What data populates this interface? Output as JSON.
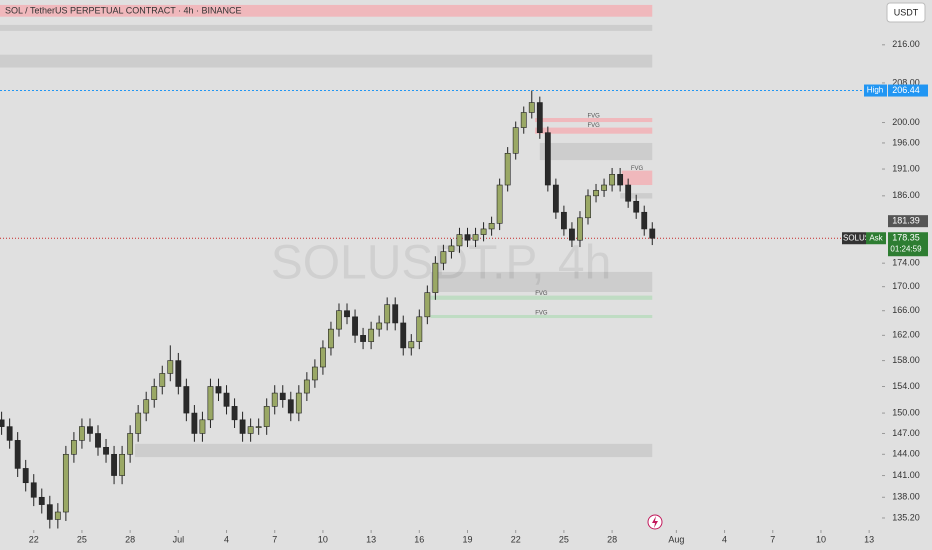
{
  "chart_data": {
    "type": "candlestick",
    "title": "SOL / TetherUS PERPETUAL CONTRACT · 4h · BINANCE",
    "watermark": "SOLUSDT.P, 4h",
    "currency_button": "USDT",
    "log_scale": true,
    "grid": false,
    "up_color": "#9aa865",
    "down_color": "#2a2a2a",
    "xlim": [
      -2.1,
      52.8
    ],
    "xticks": [
      {
        "value": 0,
        "label": "22"
      },
      {
        "value": 3,
        "label": "25"
      },
      {
        "value": 6,
        "label": "28"
      },
      {
        "value": 9,
        "label": "Jul"
      },
      {
        "value": 12,
        "label": "4"
      },
      {
        "value": 15,
        "label": "7"
      },
      {
        "value": 18,
        "label": "10"
      },
      {
        "value": 21,
        "label": "13"
      },
      {
        "value": 24,
        "label": "16"
      },
      {
        "value": 27,
        "label": "19"
      },
      {
        "value": 30,
        "label": "22"
      },
      {
        "value": 33,
        "label": "25"
      },
      {
        "value": 36,
        "label": "28"
      },
      {
        "value": 40,
        "label": "Aug"
      },
      {
        "value": 43,
        "label": "4"
      },
      {
        "value": 46,
        "label": "7"
      },
      {
        "value": 49,
        "label": "10"
      },
      {
        "value": 52,
        "label": "13"
      }
    ],
    "ylim": [
      133.6,
      225.8
    ],
    "yticks": [
      {
        "value": 135.2,
        "label": "135.20"
      },
      {
        "value": 138,
        "label": "138.00"
      },
      {
        "value": 141,
        "label": "141.00"
      },
      {
        "value": 144,
        "label": "144.00"
      },
      {
        "value": 147,
        "label": "147.00"
      },
      {
        "value": 150,
        "label": "150.00"
      },
      {
        "value": 154,
        "label": "154.00"
      },
      {
        "value": 158,
        "label": "158.00"
      },
      {
        "value": 162,
        "label": "162.00"
      },
      {
        "value": 166,
        "label": "166.00"
      },
      {
        "value": 170,
        "label": "170.00"
      },
      {
        "value": 174,
        "label": "174.00"
      },
      {
        "value": 186,
        "label": "186.00"
      },
      {
        "value": 191,
        "label": "191.00"
      },
      {
        "value": 196,
        "label": "196.00"
      },
      {
        "value": 200,
        "label": "200.00"
      },
      {
        "value": 208,
        "label": "208.00"
      },
      {
        "value": 216,
        "label": "216.00"
      }
    ],
    "x": [
      -2,
      -1.5,
      -1,
      -0.5,
      0,
      0.5,
      1,
      1.5,
      2,
      2.5,
      3,
      3.5,
      4,
      4.5,
      5,
      5.5,
      6,
      6.5,
      7,
      7.5,
      8,
      8.5,
      9,
      9.5,
      10,
      10.5,
      11,
      11.5,
      12,
      12.5,
      13,
      13.5,
      14,
      14.5,
      15,
      15.5,
      16,
      16.5,
      17,
      17.5,
      18,
      18.5,
      19,
      19.5,
      20,
      20.5,
      21,
      21.5,
      22,
      22.5,
      23,
      23.5,
      24,
      24.5,
      25,
      25.5,
      26,
      26.5,
      27,
      27.5,
      28,
      28.5,
      29,
      29.5,
      30,
      30.5,
      31,
      31.5,
      32,
      32.5,
      33,
      33.5,
      34,
      34.5,
      35,
      35.5,
      36,
      36.5,
      37,
      37.5,
      38,
      38.5
    ],
    "open": [
      149,
      148,
      146,
      142,
      140,
      138,
      137,
      135,
      136,
      144,
      146,
      148,
      147,
      145,
      144,
      141,
      144,
      147,
      150,
      152,
      154,
      156,
      158,
      154,
      150,
      147,
      149,
      154,
      153,
      151,
      149,
      147,
      148,
      148,
      151,
      153,
      152,
      150,
      153,
      155,
      157,
      160,
      163,
      166,
      165,
      162,
      161,
      163,
      164,
      167,
      164,
      160,
      161,
      165,
      169,
      174,
      176,
      177,
      179,
      178,
      179,
      180,
      181,
      188,
      194,
      199,
      202,
      204,
      198,
      188,
      183,
      180,
      178,
      182,
      186,
      187,
      188,
      190,
      188,
      185,
      183,
      180
    ],
    "high": [
      150.2,
      149.2,
      147.2,
      143.2,
      141.2,
      139.2,
      138.2,
      137.2,
      145.2,
      147.2,
      149.2,
      149.2,
      148.2,
      146.2,
      145.2,
      145.2,
      148.2,
      151.2,
      153.2,
      155.2,
      157.2,
      160.4,
      159.2,
      155.2,
      151.2,
      150.2,
      155.2,
      155.2,
      154.2,
      152.2,
      150.2,
      149.2,
      149.2,
      152.2,
      154.2,
      154.2,
      153.2,
      154.2,
      156.2,
      158.2,
      161.2,
      164.2,
      167.2,
      167.2,
      166.2,
      163.2,
      164.2,
      165.2,
      168.2,
      168.2,
      165.2,
      162.2,
      166.2,
      170.2,
      175.2,
      177.2,
      178.2,
      180.2,
      180.2,
      180.2,
      181.2,
      182.2,
      189.2,
      195.2,
      200.2,
      203.2,
      206.44,
      205.2,
      199.2,
      189.2,
      184.2,
      181.2,
      183.2,
      187.2,
      188.2,
      189.2,
      191.2,
      191.2,
      189.2,
      186.2,
      184.2,
      181.2
    ],
    "low": [
      146.8,
      144.8,
      140.8,
      138.8,
      136.8,
      135.8,
      133.8,
      133.8,
      134.8,
      142.8,
      144.8,
      145.8,
      143.8,
      142.8,
      139.8,
      139.8,
      142.8,
      145.8,
      148.8,
      150.8,
      152.8,
      154.8,
      152.8,
      148.8,
      145.8,
      145.8,
      147.8,
      151.8,
      149.8,
      147.8,
      145.8,
      145.8,
      146.8,
      146.8,
      149.8,
      150.8,
      148.8,
      148.8,
      151.8,
      153.8,
      155.8,
      158.8,
      161.8,
      163.8,
      160.8,
      159.8,
      159.8,
      161.8,
      162.8,
      162.8,
      158.8,
      158.8,
      159.8,
      163.8,
      167.8,
      172.8,
      174.8,
      175.8,
      176.8,
      176.8,
      177.8,
      178.8,
      179.8,
      186.8,
      192.8,
      197.8,
      200.8,
      196.8,
      186.8,
      181.8,
      178.8,
      176.8,
      176.8,
      180.8,
      184.8,
      185.8,
      186.8,
      186.8,
      183.8,
      181.8,
      178.8,
      177.15
    ],
    "close": [
      148,
      146,
      142,
      140,
      138,
      137,
      135,
      136,
      144,
      146,
      148,
      147,
      145,
      144,
      141,
      144,
      147,
      150,
      152,
      154,
      156,
      158,
      154,
      150,
      147,
      149,
      154,
      153,
      151,
      149,
      147,
      148,
      148,
      151,
      153,
      152,
      150,
      153,
      155,
      157,
      160,
      163,
      166,
      165,
      162,
      161,
      163,
      164,
      167,
      164,
      160,
      161,
      165,
      169,
      174,
      176,
      177,
      179,
      178,
      179,
      180,
      181,
      188,
      194,
      199,
      202,
      204,
      198,
      188,
      183,
      180,
      178,
      182,
      186,
      187,
      188,
      190,
      188,
      185,
      183,
      180,
      178.35
    ],
    "zones": [
      {
        "color": "#f0b8bc",
        "low": 222.1,
        "high": 224.7,
        "x_start": -2.1,
        "x_end": 38.5
      },
      {
        "color": "#cdcdcd",
        "low": 219.0,
        "high": 220.3,
        "x_start": -2.1,
        "x_end": 38.5
      },
      {
        "color": "#cdcdcd",
        "low": 211.2,
        "high": 213.9,
        "x_start": -2.1,
        "x_end": 38.5
      },
      {
        "color": "#f0b8bc",
        "low": 200.1,
        "high": 200.9,
        "x_start": 31.2,
        "x_end": 38.5,
        "label": "FVG"
      },
      {
        "color": "#f0b8bc",
        "low": 197.8,
        "high": 199.0,
        "x_start": 31.2,
        "x_end": 38.5,
        "label": "FVG"
      },
      {
        "color": "#cdcdcd",
        "low": 192.7,
        "high": 196.0,
        "x_start": 31.5,
        "x_end": 38.5
      },
      {
        "color": "#f0b8bc",
        "low": 188.0,
        "high": 190.7,
        "x_start": 36.6,
        "x_end": 38.5,
        "label": "FVG"
      },
      {
        "color": "#cdcdcd",
        "low": 185.5,
        "high": 186.5,
        "x_start": 36.5,
        "x_end": 38.5
      },
      {
        "color": "#cdcdcd",
        "low": 169.1,
        "high": 172.5,
        "x_start": 24.7,
        "x_end": 38.5
      },
      {
        "color": "#bfdcc3",
        "low": 167.8,
        "high": 168.5,
        "x_start": 24.7,
        "x_end": 38.5,
        "label": "FVG"
      },
      {
        "color": "#bfdcc3",
        "low": 164.8,
        "high": 165.3,
        "x_start": 24.7,
        "x_end": 38.5,
        "label": "FVG"
      },
      {
        "color": "#cdcdcd",
        "low": 143.6,
        "high": 145.5,
        "x_start": 6.3,
        "x_end": 38.5
      }
    ],
    "high_line": {
      "label": "High",
      "value": 206.44,
      "color": "#2196f3"
    },
    "prev_price": 181.39,
    "last_price": {
      "symbol": "SOLUSDT.P",
      "side": "Ask",
      "value": 178.35,
      "countdown": "01:24:59",
      "color": "#2e7d32"
    }
  }
}
